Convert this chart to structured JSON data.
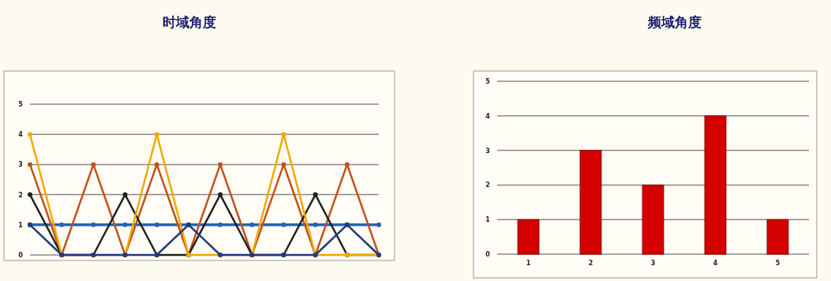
{
  "chart_data": [
    {
      "type": "line",
      "title": "时域角度",
      "categories": [
        null,
        null,
        null,
        null,
        null,
        null,
        null,
        null,
        null,
        null,
        null,
        null
      ],
      "series": [
        {
          "color": "#2a62b0",
          "values": [
            1,
            1,
            1,
            1,
            1,
            1,
            1,
            1,
            1,
            1,
            1,
            1
          ]
        },
        {
          "color": "#c4501c",
          "values": [
            3,
            0,
            3,
            0,
            3,
            0,
            3,
            0,
            3,
            0,
            3,
            0
          ]
        },
        {
          "color": "#222222",
          "values": [
            2,
            0,
            0,
            2,
            0,
            0,
            2,
            0,
            0,
            2,
            0,
            0
          ]
        },
        {
          "color": "#f2a900",
          "values": [
            4,
            0,
            0,
            0,
            4,
            0,
            0,
            0,
            4,
            0,
            0,
            0
          ]
        },
        {
          "color": "#1c3c7c",
          "values": [
            1,
            0,
            0,
            0,
            0,
            1,
            0,
            0,
            0,
            0,
            1,
            0
          ]
        }
      ],
      "ylim": [
        0,
        5
      ],
      "yticks": [
        0,
        1,
        2,
        3,
        4,
        5
      ],
      "grid": "y",
      "marker": "circle",
      "line_style": "solid"
    },
    {
      "type": "bar",
      "title": "频域角度",
      "categories": [
        "1",
        "2",
        "3",
        "4",
        "5"
      ],
      "values": [
        1,
        3,
        2,
        4,
        1
      ],
      "color": "#d40000",
      "ylim": [
        0,
        5
      ],
      "yticks": [
        0,
        1,
        2,
        3,
        4,
        5
      ],
      "grid": "y"
    }
  ]
}
